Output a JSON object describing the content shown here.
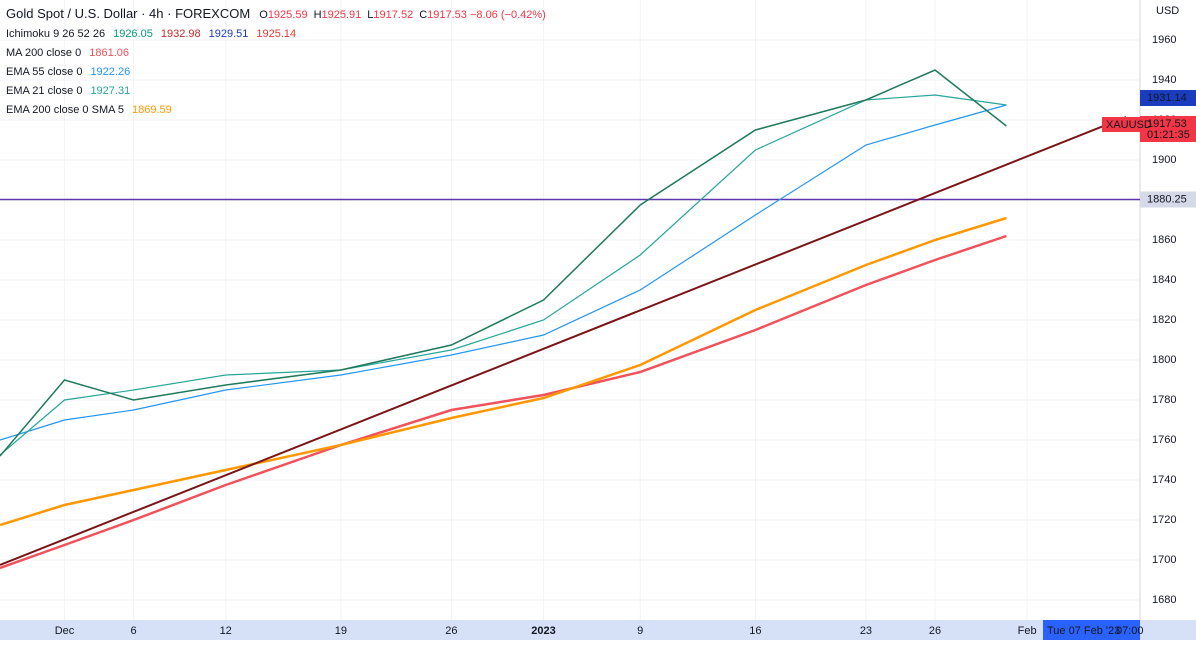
{
  "chart_data": {
    "type": "line",
    "title": "Gold Spot / U.S. Dollar · 4h · FOREXCOM",
    "ohlc": [
      {
        "label": "O",
        "value": "1925.59"
      },
      {
        "label": "H",
        "value": "1925.91"
      },
      {
        "label": "L",
        "value": "1917.52"
      },
      {
        "label": "C",
        "value": "1917.53"
      }
    ],
    "change": "−8.06 (−0.42%)",
    "ichimoku": {
      "name": "Ichimoku 9 26 52 26",
      "values": [
        "1926.05",
        "1932.98",
        "1929.51",
        "1925.14"
      ],
      "colors": [
        "#089981",
        "#c62828",
        "#1a3dbf",
        "#e53935"
      ]
    },
    "currency": "USD",
    "symbol": "XAUUSD",
    "countdown": "01:21:35",
    "cursor_date": "Tue 07 Feb '23",
    "cursor_time": "07:00",
    "price_tags": [
      {
        "label": "1931.14",
        "color": "#1a3dbf"
      },
      {
        "label": "1917.53",
        "color": "#f23645"
      }
    ],
    "xlim": [
      -2.8,
      46.7
    ],
    "xticks": [
      {
        "value": 0,
        "label": "Dec"
      },
      {
        "value": 3,
        "label": "6"
      },
      {
        "value": 7,
        "label": "12"
      },
      {
        "value": 12,
        "label": "19"
      },
      {
        "value": 16.8,
        "label": "26"
      },
      {
        "value": 20.8,
        "label": "2023"
      },
      {
        "value": 25,
        "label": "9"
      },
      {
        "value": 30,
        "label": "16"
      },
      {
        "value": 34.8,
        "label": "23"
      },
      {
        "value": 37.8,
        "label": "26"
      },
      {
        "value": 41.8,
        "label": "Feb"
      }
    ],
    "ylim": [
      1670,
      1980
    ],
    "yticks": [
      1680,
      1700,
      1720,
      1740,
      1760,
      1780,
      1800,
      1820,
      1840,
      1860,
      1880,
      1900,
      1920,
      1940,
      1960
    ],
    "grid": true,
    "level": {
      "value": 1880.25,
      "color": "#5e35b1"
    },
    "series": [
      {
        "name": "MA 200 close 0",
        "legend_value": "1861.06",
        "color": "#f0525b",
        "width": 2.5,
        "x": [
          -2.8,
          0,
          3,
          7,
          12,
          16.8,
          20.8,
          25,
          30,
          34.8,
          37.8,
          40.9
        ],
        "values": [
          1696,
          1707.5,
          1720,
          1737.5,
          1757.5,
          1775,
          1782.5,
          1794,
          1815,
          1837.5,
          1850,
          1862
        ]
      },
      {
        "name": "EMA 55 close 0",
        "legend_value": "1922.26",
        "color": "#2196f3",
        "width": 1.2,
        "x": [
          -2.8,
          0,
          3,
          7,
          12,
          16.8,
          20.8,
          25,
          30,
          34.8,
          37.8,
          40.9
        ],
        "values": [
          1760,
          1770,
          1775,
          1785,
          1792.5,
          1802.5,
          1812.5,
          1835,
          1872.5,
          1907.5,
          1917.5,
          1927.5
        ]
      },
      {
        "name": "EMA 21 close 0",
        "legend_value": "1927.31",
        "color": "#26a69a",
        "width": 1.2,
        "x": [
          -2.8,
          0,
          3,
          7,
          12,
          16.8,
          20.8,
          25,
          30,
          34.8,
          37.8,
          40.9
        ],
        "values": [
          1752.5,
          1780,
          1785,
          1792.5,
          1795,
          1805,
          1820,
          1852.5,
          1905,
          1930,
          1932.5,
          1927.5
        ]
      },
      {
        "name": "EMA 200 close 0 SMA 5",
        "legend_value": "1869.59",
        "color": "#ff9800",
        "width": 2.5,
        "x": [
          -2.8,
          0,
          3,
          7,
          12,
          16.8,
          20.8,
          25,
          30,
          34.8,
          37.8,
          40.9
        ],
        "values": [
          1717.5,
          1727.5,
          1735,
          1745,
          1757.5,
          1771,
          1781,
          1797.5,
          1825,
          1847.5,
          1860,
          1871
        ]
      },
      {
        "name": "Close",
        "color": "#1f7a5a",
        "width": 1.5,
        "x": [
          -2.8,
          0,
          3,
          7,
          12,
          16.8,
          20.8,
          25,
          30,
          34.8,
          37.8,
          40.9
        ],
        "values": [
          1752,
          1790,
          1780,
          1787.5,
          1795,
          1807.5,
          1830,
          1877.5,
          1915,
          1930,
          1945,
          1917
        ]
      },
      {
        "name": "Trend line",
        "color": "#7b1416",
        "width": 2,
        "x": [
          -2.8,
          46.1
        ],
        "values": [
          1697.5,
          1921.5
        ]
      }
    ]
  }
}
